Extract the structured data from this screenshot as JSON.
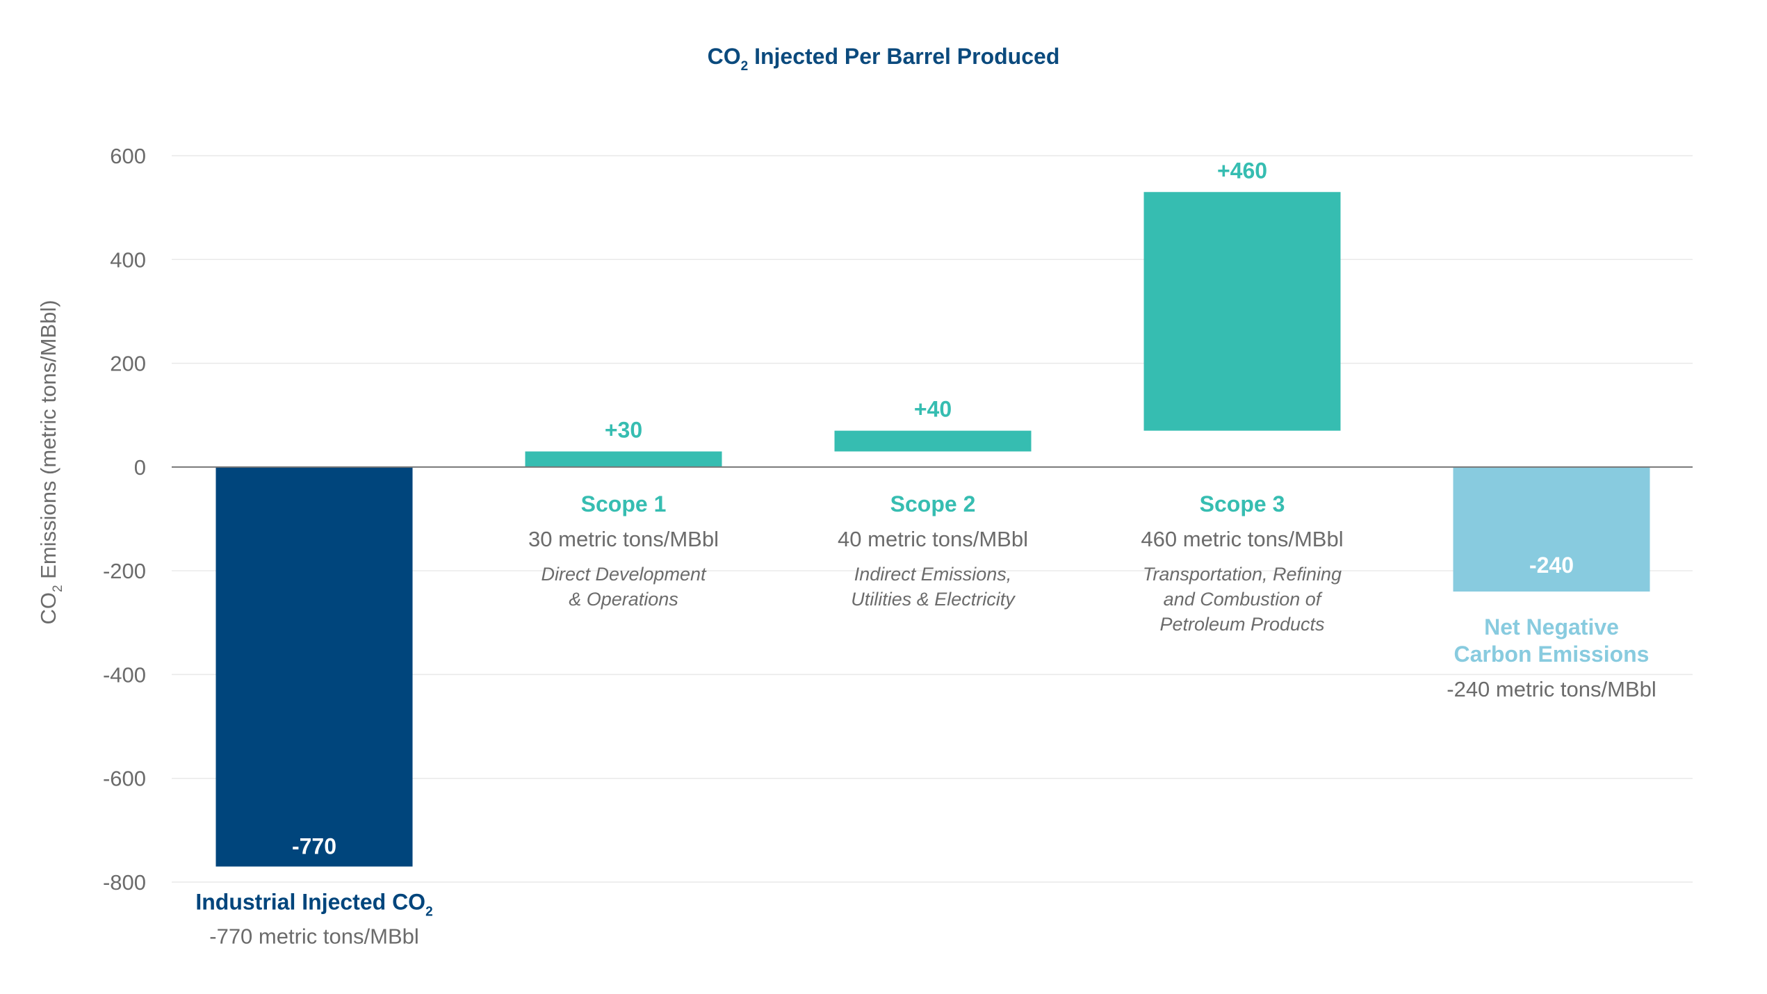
{
  "chart_data": {
    "type": "bar",
    "subtype": "waterfall",
    "title": "CO2 Injected Per Barrel Produced",
    "title_parts": {
      "pre": "CO",
      "sub": "2",
      "post": " Injected Per Barrel Produced"
    },
    "ylabel": "CO2 Emissions (metric tons/MBbl)",
    "ylabel_parts": {
      "pre": "CO",
      "sub": "2",
      "post": " Emissions (metric tons/MBbl)"
    },
    "xlabel": "",
    "ylim": [
      -800,
      600
    ],
    "yticks": [
      600,
      400,
      200,
      0,
      -200,
      -400,
      -600,
      -800
    ],
    "grid": true,
    "categories": [
      "Industrial Injected CO2",
      "Scope 1",
      "Scope 2",
      "Scope 3",
      "Net Negative Carbon Emissions"
    ],
    "bars": [
      {
        "name": "Industrial Injected CO2",
        "name_parts": {
          "pre": "Industrial Injected CO",
          "sub": "2"
        },
        "start": 0,
        "end": -770,
        "value": -770,
        "label": "-770",
        "label_position": "inside-bottom",
        "sublabel": "-770 metric tons/MBbl",
        "description": [],
        "color": "#00457c",
        "category_color": "#00457c",
        "label_color": "#ffffff"
      },
      {
        "name": "Scope 1",
        "start": 0,
        "end": 30,
        "value": 30,
        "label": "+30",
        "label_position": "above",
        "sublabel": "30 metric tons/MBbl",
        "description": [
          "Direct Development",
          "& Operations"
        ],
        "color": "#36bdb1",
        "category_color": "#36bdb1",
        "label_color": "#36bdb1"
      },
      {
        "name": "Scope 2",
        "start": 30,
        "end": 70,
        "value": 40,
        "label": "+40",
        "label_position": "above",
        "sublabel": "40 metric tons/MBbl",
        "description": [
          "Indirect Emissions,",
          "Utilities & Electricity"
        ],
        "color": "#36bdb1",
        "category_color": "#36bdb1",
        "label_color": "#36bdb1"
      },
      {
        "name": "Scope 3",
        "start": 70,
        "end": 530,
        "value": 460,
        "label": "+460",
        "label_position": "above",
        "sublabel": "460 metric tons/MBbl",
        "description": [
          "Transportation, Refining",
          "and Combustion of",
          "Petroleum Products"
        ],
        "color": "#36bdb1",
        "category_color": "#36bdb1",
        "label_color": "#36bdb1"
      },
      {
        "name": "Net Negative Carbon Emissions",
        "name_lines": [
          "Net Negative",
          "Carbon Emissions"
        ],
        "start": 0,
        "end": -240,
        "value": -240,
        "label": "-240",
        "label_position": "inside-top",
        "sublabel": "-240 metric tons/MBbl",
        "description": [],
        "color": "#88cbdf",
        "category_color": "#88cbdf",
        "label_color": "#ffffff"
      }
    ]
  }
}
